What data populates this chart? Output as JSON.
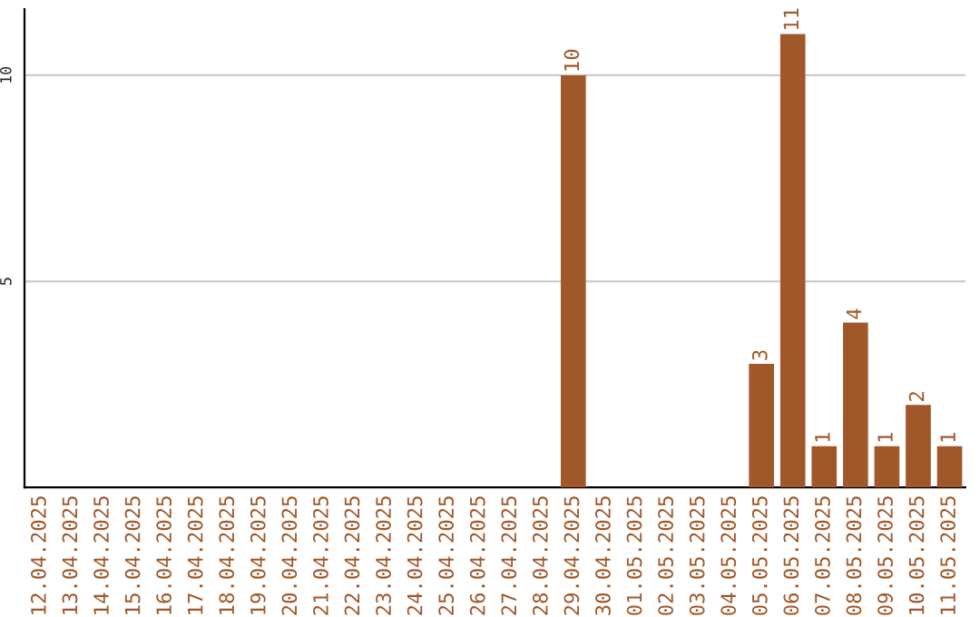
{
  "chart_data": {
    "type": "bar",
    "categories": [
      "12.04.2025",
      "13.04.2025",
      "14.04.2025",
      "15.04.2025",
      "16.04.2025",
      "17.04.2025",
      "18.04.2025",
      "19.04.2025",
      "20.04.2025",
      "21.04.2025",
      "22.04.2025",
      "23.04.2025",
      "24.04.2025",
      "25.04.2025",
      "26.04.2025",
      "27.04.2025",
      "28.04.2025",
      "29.04.2025",
      "30.04.2025",
      "01.05.2025",
      "02.05.2025",
      "03.05.2025",
      "04.05.2025",
      "05.05.2025",
      "06.05.2025",
      "07.05.2025",
      "08.05.2025",
      "09.05.2025",
      "10.05.2025",
      "11.05.2025"
    ],
    "values": [
      0,
      0,
      0,
      0,
      0,
      0,
      0,
      0,
      0,
      0,
      0,
      0,
      0,
      0,
      0,
      0,
      0,
      10,
      0,
      0,
      0,
      0,
      0,
      3,
      11,
      1,
      4,
      1,
      2,
      1
    ],
    "value_labels": [
      null,
      null,
      null,
      null,
      null,
      null,
      null,
      null,
      null,
      null,
      null,
      null,
      null,
      null,
      null,
      null,
      null,
      "10",
      null,
      null,
      null,
      null,
      null,
      "3",
      "11",
      "1",
      "4",
      "1",
      "2",
      "1"
    ],
    "color": "#a0582a",
    "ylim": [
      0,
      11.6
    ],
    "yticks": [
      5,
      10
    ],
    "grid": "y"
  }
}
